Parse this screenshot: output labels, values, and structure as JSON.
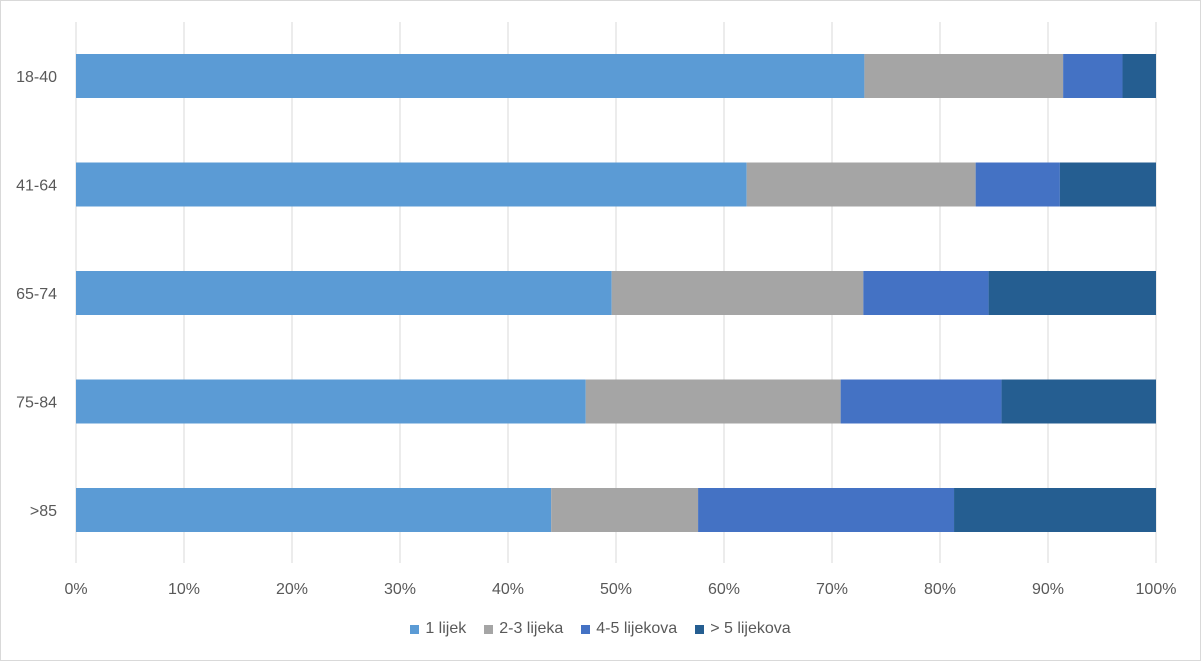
{
  "chart_data": {
    "type": "bar",
    "orientation": "horizontal",
    "stacked": "percent",
    "title": "",
    "xlabel": "",
    "ylabel": "",
    "xlim": [
      0,
      100
    ],
    "x_ticks": [
      "0%",
      "10%",
      "20%",
      "30%",
      "40%",
      "50%",
      "60%",
      "70%",
      "80%",
      "90%",
      "100%"
    ],
    "grid": "vertical",
    "legend_position": "bottom",
    "categories": [
      "18-40",
      "41-64",
      "65-74",
      "75-84",
      ">85"
    ],
    "series": [
      {
        "name": "1 lijek",
        "color": "#5B9BD5",
        "values": [
          73.0,
          62.1,
          49.6,
          47.2,
          44.0
        ]
      },
      {
        "name": "2-3 lijeka",
        "color": "#A5A5A5",
        "values": [
          18.4,
          21.2,
          23.3,
          23.6,
          13.6
        ]
      },
      {
        "name": "4-5 lijekova",
        "color": "#4472C4",
        "values": [
          5.5,
          7.8,
          11.6,
          14.9,
          23.7
        ]
      },
      {
        "name": "> 5 lijekova",
        "color": "#255E91",
        "values": [
          3.1,
          8.9,
          15.5,
          14.3,
          18.7
        ]
      }
    ]
  }
}
